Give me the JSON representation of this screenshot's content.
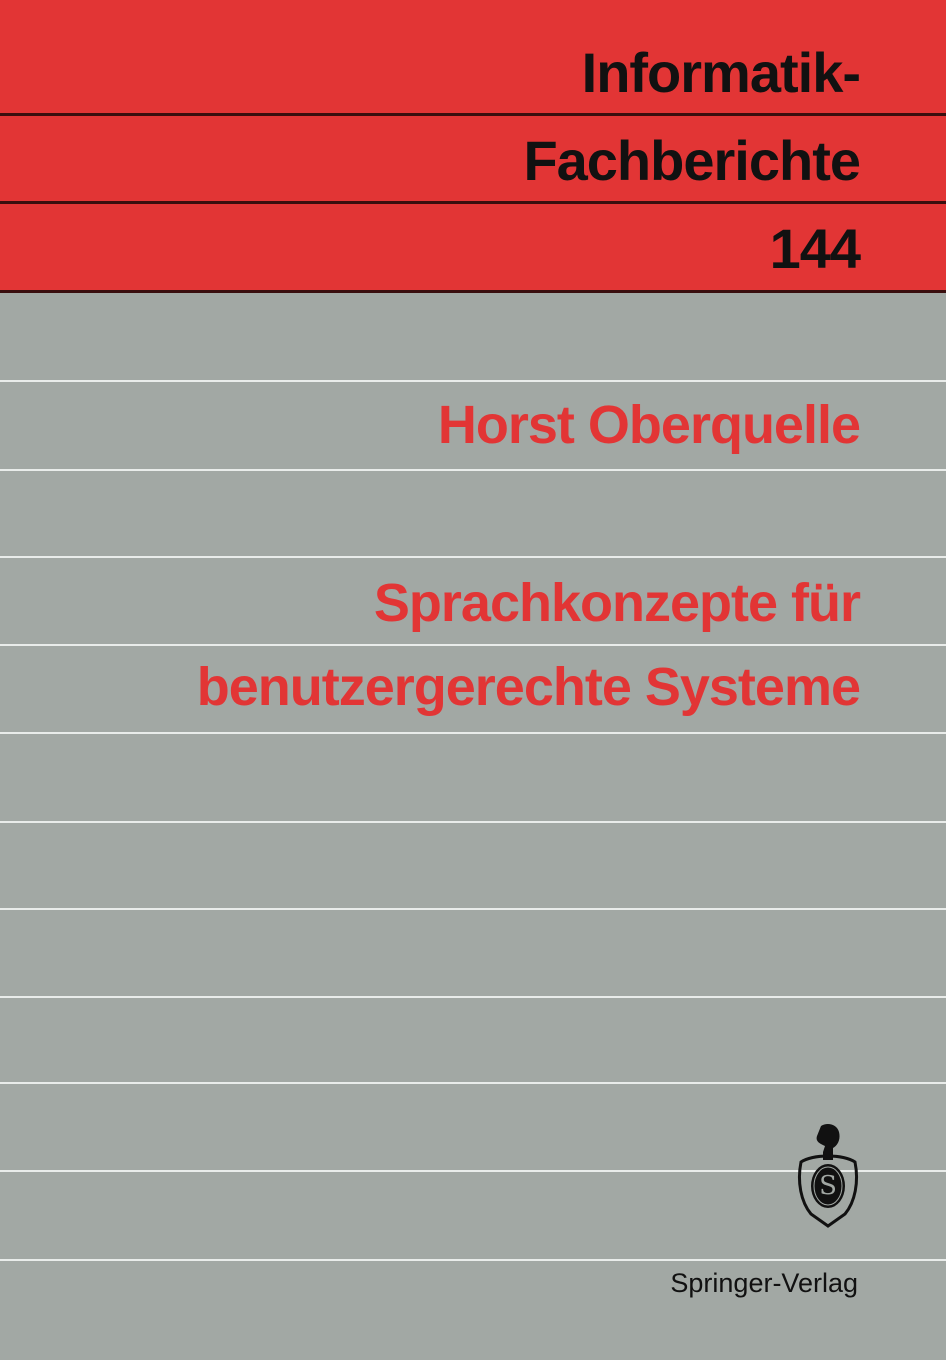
{
  "cover": {
    "series_line1": "Informatik-",
    "series_line2": "Fachberichte",
    "volume": "144",
    "author": "Horst Oberquelle",
    "title_line1": "Sprachkonzepte für",
    "title_line2": "benutzergerechte Systeme",
    "publisher": "Springer-Verlag",
    "logo": "springer-knight-emblem-icon"
  },
  "colors": {
    "band": "#e23535",
    "background": "#a2a8a4",
    "accent_text": "#e23535"
  }
}
